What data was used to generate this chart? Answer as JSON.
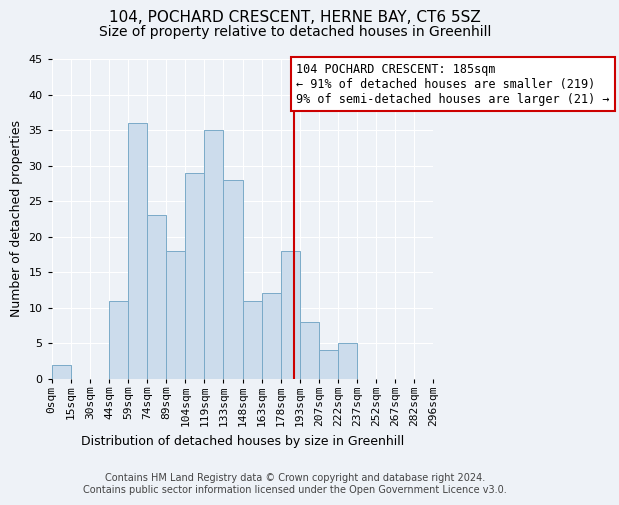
{
  "title": "104, POCHARD CRESCENT, HERNE BAY, CT6 5SZ",
  "subtitle": "Size of property relative to detached houses in Greenhill",
  "xlabel": "Distribution of detached houses by size in Greenhill",
  "ylabel": "Number of detached properties",
  "footer_line1": "Contains HM Land Registry data © Crown copyright and database right 2024.",
  "footer_line2": "Contains public sector information licensed under the Open Government Licence v3.0.",
  "bin_labels": [
    "0sqm",
    "15sqm",
    "30sqm",
    "44sqm",
    "59sqm",
    "74sqm",
    "89sqm",
    "104sqm",
    "119sqm",
    "133sqm",
    "148sqm",
    "163sqm",
    "178sqm",
    "193sqm",
    "207sqm",
    "222sqm",
    "237sqm",
    "252sqm",
    "267sqm",
    "282sqm",
    "296sqm"
  ],
  "counts": [
    2,
    0,
    0,
    11,
    36,
    23,
    18,
    29,
    35,
    28,
    11,
    12,
    18,
    8,
    4,
    5,
    0,
    0,
    0,
    0
  ],
  "bar_color": "#ccdcec",
  "bar_edge_color": "#7aaac8",
  "ylim": [
    0,
    45
  ],
  "yticks": [
    0,
    5,
    10,
    15,
    20,
    25,
    30,
    35,
    40,
    45
  ],
  "vline_index": 12.67,
  "vline_color": "#cc0000",
  "annotation_text": "104 POCHARD CRESCENT: 185sqm\n← 91% of detached houses are smaller (219)\n9% of semi-detached houses are larger (21) →",
  "annotation_box_color": "#cc0000",
  "background_color": "#eef2f7",
  "grid_color": "#ffffff",
  "title_fontsize": 11,
  "subtitle_fontsize": 10,
  "axis_label_fontsize": 9,
  "tick_fontsize": 8,
  "annotation_fontsize": 8.5,
  "footer_fontsize": 7
}
